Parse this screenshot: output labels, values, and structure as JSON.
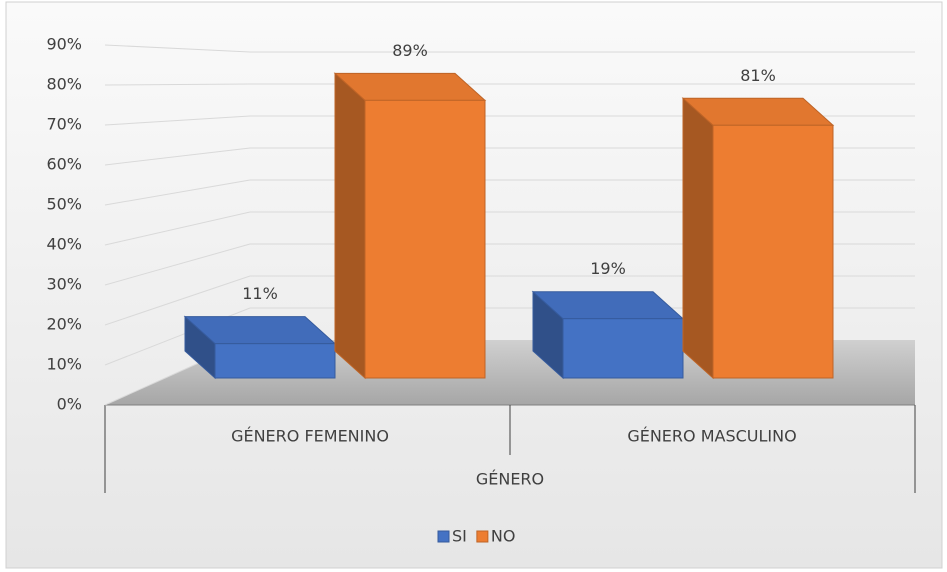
{
  "chart_data": {
    "type": "bar3d",
    "categories": [
      "GÉNERO FEMENINO",
      "GÉNERO MASCULINO"
    ],
    "x_label": "GÉNERO",
    "series": [
      {
        "name": "SI",
        "color": "#4472c4",
        "values": [
          11,
          19
        ],
        "value_labels": [
          "11%",
          "19%"
        ]
      },
      {
        "name": "NO",
        "color": "#ed7d31",
        "values": [
          89,
          81
        ],
        "value_labels": [
          "89%",
          "81%"
        ]
      }
    ],
    "ylim": [
      0,
      90
    ],
    "yticks": [
      {
        "value": 0,
        "label": "0%"
      },
      {
        "value": 10,
        "label": "10%"
      },
      {
        "value": 20,
        "label": "20%"
      },
      {
        "value": 30,
        "label": "30%"
      },
      {
        "value": 40,
        "label": "40%"
      },
      {
        "value": 50,
        "label": "50%"
      },
      {
        "value": 60,
        "label": "60%"
      },
      {
        "value": 70,
        "label": "70%"
      },
      {
        "value": 80,
        "label": "80%"
      },
      {
        "value": 90,
        "label": "90%"
      }
    ],
    "grid": true,
    "legend": "bottom"
  }
}
